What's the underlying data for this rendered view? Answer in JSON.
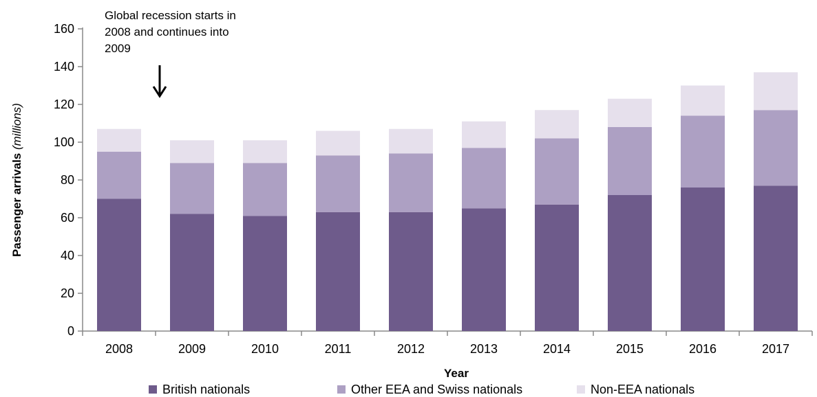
{
  "chart_data": {
    "type": "bar",
    "stacked": true,
    "categories": [
      "2008",
      "2009",
      "2010",
      "2011",
      "2012",
      "2013",
      "2014",
      "2015",
      "2016",
      "2017"
    ],
    "series": [
      {
        "name": "British nationals",
        "color": "#6e5b8b",
        "values": [
          70,
          62,
          61,
          63,
          63,
          65,
          67,
          72,
          76,
          77
        ]
      },
      {
        "name": "Other EEA and Swiss nationals",
        "color": "#ada0c3",
        "values": [
          25,
          27,
          28,
          30,
          31,
          32,
          35,
          36,
          38,
          40
        ]
      },
      {
        "name": "Non-EEA nationals",
        "color": "#e6e0ec",
        "values": [
          12,
          12,
          12,
          13,
          13,
          14,
          15,
          15,
          16,
          20
        ]
      }
    ],
    "ylim": [
      0,
      160
    ],
    "yticks": [
      0,
      20,
      40,
      60,
      80,
      100,
      120,
      140,
      160
    ],
    "ylabel_main": "Passenger arrivals ",
    "ylabel_unit": "(millions)",
    "xlabel": "Year",
    "legend_position": "bottom",
    "annotation": {
      "lines": [
        "Global recession starts in",
        "2008 and continues into",
        "2009"
      ]
    }
  }
}
